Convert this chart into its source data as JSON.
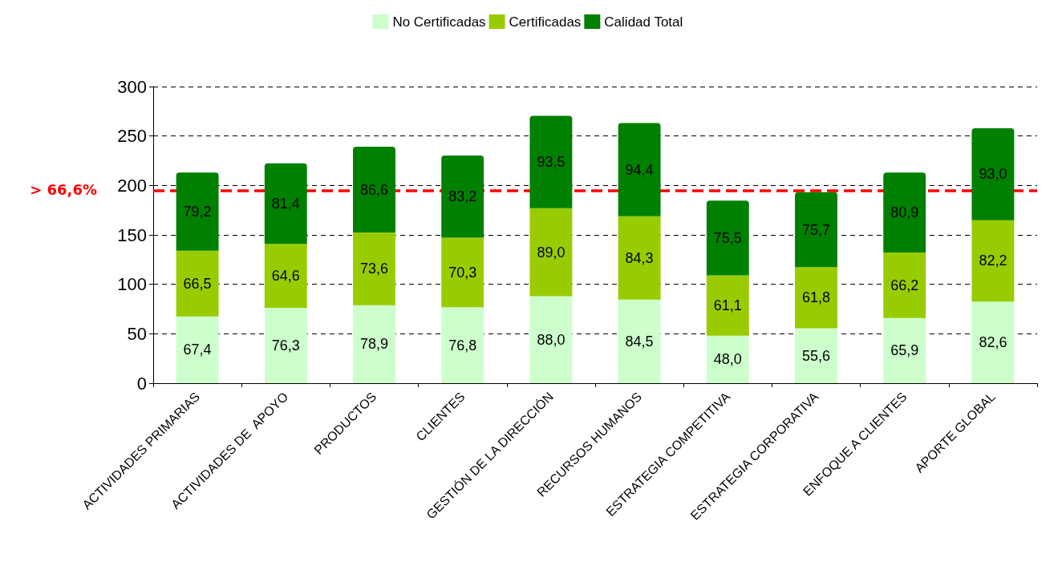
{
  "chart_data": {
    "type": "bar",
    "stacked": true,
    "categories": [
      "ACTIVIDADES PRIMARIAS",
      "ACTIVIDADES DE  APOYO",
      "PRODUCTOS",
      "CLIENTES",
      "GESTIÓN DE LA DIRECCIÓN",
      "RECURSOS HUMANOS",
      "ESTRATEGIA COMPETITIVA",
      "ESTRATEGIA CORPORATIVA",
      "ENFOQUE A CLIENTES",
      "APORTE GLOBAL"
    ],
    "series": [
      {
        "name": "No Certificadas",
        "color": "#ccffcc",
        "values": [
          67.4,
          76.3,
          78.9,
          76.8,
          88.0,
          84.5,
          48.0,
          55.6,
          65.9,
          82.6
        ],
        "value_labels": [
          "67,4",
          "76,3",
          "78,9",
          "76,8",
          "88,0",
          "84,5",
          "48,0",
          "55,6",
          "65,9",
          "82,6"
        ]
      },
      {
        "name": "Certificadas",
        "color": "#99cc00",
        "values": [
          66.5,
          64.6,
          73.6,
          70.3,
          89.0,
          84.3,
          61.1,
          61.8,
          66.2,
          82.2
        ],
        "value_labels": [
          "66,5",
          "64,6",
          "73,6",
          "70,3",
          "89,0",
          "84,3",
          "61,1",
          "61,8",
          "66,2",
          "82,2"
        ]
      },
      {
        "name": "Calidad Total",
        "color": "#008000",
        "values": [
          79.2,
          81.4,
          86.6,
          83.2,
          93.5,
          94.4,
          75.5,
          75.7,
          80.9,
          93.0
        ],
        "value_labels": [
          "79,2",
          "81,4",
          "86,6",
          "83,2",
          "93,5",
          "94,4",
          "75,5",
          "75,7",
          "80,9",
          "93,0"
        ]
      }
    ],
    "ylim": [
      0,
      300
    ],
    "yticks": [
      0,
      50,
      100,
      150,
      200,
      250,
      300
    ],
    "grid": "y",
    "legend": "top",
    "ref_lines": [
      {
        "axis": "y",
        "value": 195,
        "color": "#ff0000",
        "line_style": "dashed"
      }
    ],
    "annotations": [
      "> 66,6%"
    ]
  }
}
